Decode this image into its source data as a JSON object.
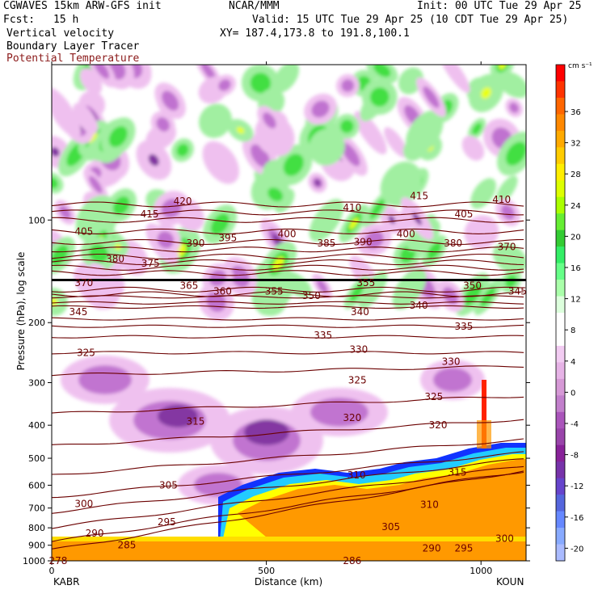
{
  "header": {
    "model": "CGWAVES 15km ARW-GFS init",
    "org": "NCAR/MMM",
    "init": "Init: 00 UTC Tue 29 Apr 25",
    "fcst_label": "Fcst:",
    "fcst_value": "15 h",
    "valid": "Valid: 15 UTC Tue 29 Apr 25 (10 CDT Tue 29 Apr 25)",
    "field1": "Vertical velocity",
    "xy": "XY= 187.4,173.8 to 191.8,100.1",
    "field2": "Boundary Layer Tracer",
    "field3": "Potential Temperature"
  },
  "colors": {
    "theta": "#6b0000",
    "up_yellow": "#e6ff00",
    "up_green": "#33dd33",
    "up_light": "#99ee99",
    "down_light": "#eebbee",
    "down_mid": "#bb66cc",
    "down_dark": "#772299",
    "pbl_blue": "#1133ff",
    "pbl_cyan": "#22ccff",
    "pbl_orange": "#ff9900",
    "pbl_red": "#ff2200"
  },
  "chart_data": {
    "type": "cross-section",
    "xlabel": "Distance (km)",
    "ylabel": "Pressure (hPa), log scale",
    "x_ticks": [
      0,
      500,
      1000
    ],
    "xlim": [
      0,
      1105
    ],
    "x_endpoints": [
      "KABR",
      "KOUN"
    ],
    "y_ticks": [
      100,
      200,
      300,
      400,
      500,
      600,
      700,
      800,
      900,
      1000
    ],
    "ylim_hpa": [
      35,
      1000
    ],
    "colorbar": {
      "units": "cm s⁻¹",
      "ticks": [
        36,
        32,
        28,
        24,
        20,
        16,
        12,
        8,
        4,
        0,
        -4,
        -8,
        -12,
        -16,
        -20
      ],
      "colors": [
        "#ff0000",
        "#ff3300",
        "#ff6600",
        "#ff8800",
        "#ffaa00",
        "#ffcc00",
        "#ffee00",
        "#ddff00",
        "#aaff00",
        "#66ee33",
        "#33cc33",
        "#33ee66",
        "#66ff88",
        "#aaffaa",
        "#ddffdd",
        "#ffffff",
        "#ffffff",
        "#f2ccf2",
        "#e6b3e6",
        "#d699d6",
        "#c27fcc",
        "#aa55bb",
        "#9944aa",
        "#882299",
        "#7733aa",
        "#6644cc",
        "#5566dd",
        "#6688ff",
        "#88aaff",
        "#aabbff"
      ]
    },
    "theta_contours_K": [
      {
        "level": 420,
        "p": 90
      },
      {
        "level": 415,
        "p": 95
      },
      {
        "level": 410,
        "p": 100
      },
      {
        "level": 405,
        "p": 108
      },
      {
        "level": 400,
        "p": 116
      },
      {
        "level": 395,
        "p": 122
      },
      {
        "level": 390,
        "p": 128
      },
      {
        "level": 385,
        "p": 133
      },
      {
        "level": 380,
        "p": 138
      },
      {
        "level": 375,
        "p": 143
      },
      {
        "level": 370,
        "p": 165
      },
      {
        "level": 365,
        "p": 160
      },
      {
        "level": 360,
        "p": 168
      },
      {
        "level": 355,
        "p": 175
      },
      {
        "level": 350,
        "p": 180
      },
      {
        "level": 345,
        "p": 195
      },
      {
        "level": 340,
        "p": 205
      },
      {
        "level": 335,
        "p": 220
      },
      {
        "level": 330,
        "p": 245
      },
      {
        "level": 325,
        "p": 285
      },
      {
        "level": 320,
        "p": 370
      },
      {
        "level": 315,
        "p": 460
      },
      {
        "level": 310,
        "p": 560
      },
      {
        "level": 305,
        "p": 650
      },
      {
        "level": 300,
        "p": 720
      },
      {
        "level": 295,
        "p": 800
      },
      {
        "level": 290,
        "p": 880
      },
      {
        "level": 285,
        "p": 930
      }
    ],
    "contour_labels": [
      {
        "text": "420",
        "x": 305,
        "p": 88
      },
      {
        "text": "415",
        "x": 228,
        "p": 96
      },
      {
        "text": "415",
        "x": 856,
        "p": 85
      },
      {
        "text": "410",
        "x": 700,
        "p": 92
      },
      {
        "text": "410",
        "x": 1048,
        "p": 87
      },
      {
        "text": "405",
        "x": 75,
        "p": 108
      },
      {
        "text": "405",
        "x": 960,
        "p": 96
      },
      {
        "text": "400",
        "x": 548,
        "p": 110
      },
      {
        "text": "400",
        "x": 825,
        "p": 110
      },
      {
        "text": "395",
        "x": 410,
        "p": 113
      },
      {
        "text": "390",
        "x": 335,
        "p": 117
      },
      {
        "text": "390",
        "x": 725,
        "p": 116
      },
      {
        "text": "385",
        "x": 640,
        "p": 117
      },
      {
        "text": "380",
        "x": 148,
        "p": 130
      },
      {
        "text": "380",
        "x": 935,
        "p": 117
      },
      {
        "text": "375",
        "x": 230,
        "p": 134
      },
      {
        "text": "370",
        "x": 75,
        "p": 153
      },
      {
        "text": "370",
        "x": 1060,
        "p": 120
      },
      {
        "text": "365",
        "x": 320,
        "p": 156
      },
      {
        "text": "360",
        "x": 398,
        "p": 162
      },
      {
        "text": "355",
        "x": 518,
        "p": 162
      },
      {
        "text": "355",
        "x": 732,
        "p": 153
      },
      {
        "text": "350",
        "x": 605,
        "p": 167
      },
      {
        "text": "350",
        "x": 980,
        "p": 156
      },
      {
        "text": "345",
        "x": 62,
        "p": 186
      },
      {
        "text": "345",
        "x": 1085,
        "p": 162
      },
      {
        "text": "340",
        "x": 718,
        "p": 186
      },
      {
        "text": "340",
        "x": 855,
        "p": 178
      },
      {
        "text": "335",
        "x": 632,
        "p": 218
      },
      {
        "text": "335",
        "x": 960,
        "p": 205
      },
      {
        "text": "330",
        "x": 715,
        "p": 240
      },
      {
        "text": "330",
        "x": 930,
        "p": 260
      },
      {
        "text": "325",
        "x": 80,
        "p": 245
      },
      {
        "text": "325",
        "x": 712,
        "p": 295
      },
      {
        "text": "325",
        "x": 890,
        "p": 330
      },
      {
        "text": "320",
        "x": 700,
        "p": 380
      },
      {
        "text": "320",
        "x": 900,
        "p": 400
      },
      {
        "text": "315",
        "x": 335,
        "p": 390
      },
      {
        "text": "315",
        "x": 945,
        "p": 550
      },
      {
        "text": "310",
        "x": 710,
        "p": 560
      },
      {
        "text": "310",
        "x": 880,
        "p": 685
      },
      {
        "text": "305",
        "x": 272,
        "p": 600
      },
      {
        "text": "305",
        "x": 790,
        "p": 795
      },
      {
        "text": "300",
        "x": 75,
        "p": 680
      },
      {
        "text": "300",
        "x": 1055,
        "p": 860
      },
      {
        "text": "295",
        "x": 268,
        "p": 770
      },
      {
        "text": "295",
        "x": 960,
        "p": 920
      },
      {
        "text": "290",
        "x": 100,
        "p": 830
      },
      {
        "text": "290",
        "x": 885,
        "p": 920
      },
      {
        "text": "285",
        "x": 175,
        "p": 900
      },
      {
        "text": "286",
        "x": 700,
        "p": 1000
      },
      {
        "text": "278",
        "x": 15,
        "p": 1000
      }
    ]
  }
}
